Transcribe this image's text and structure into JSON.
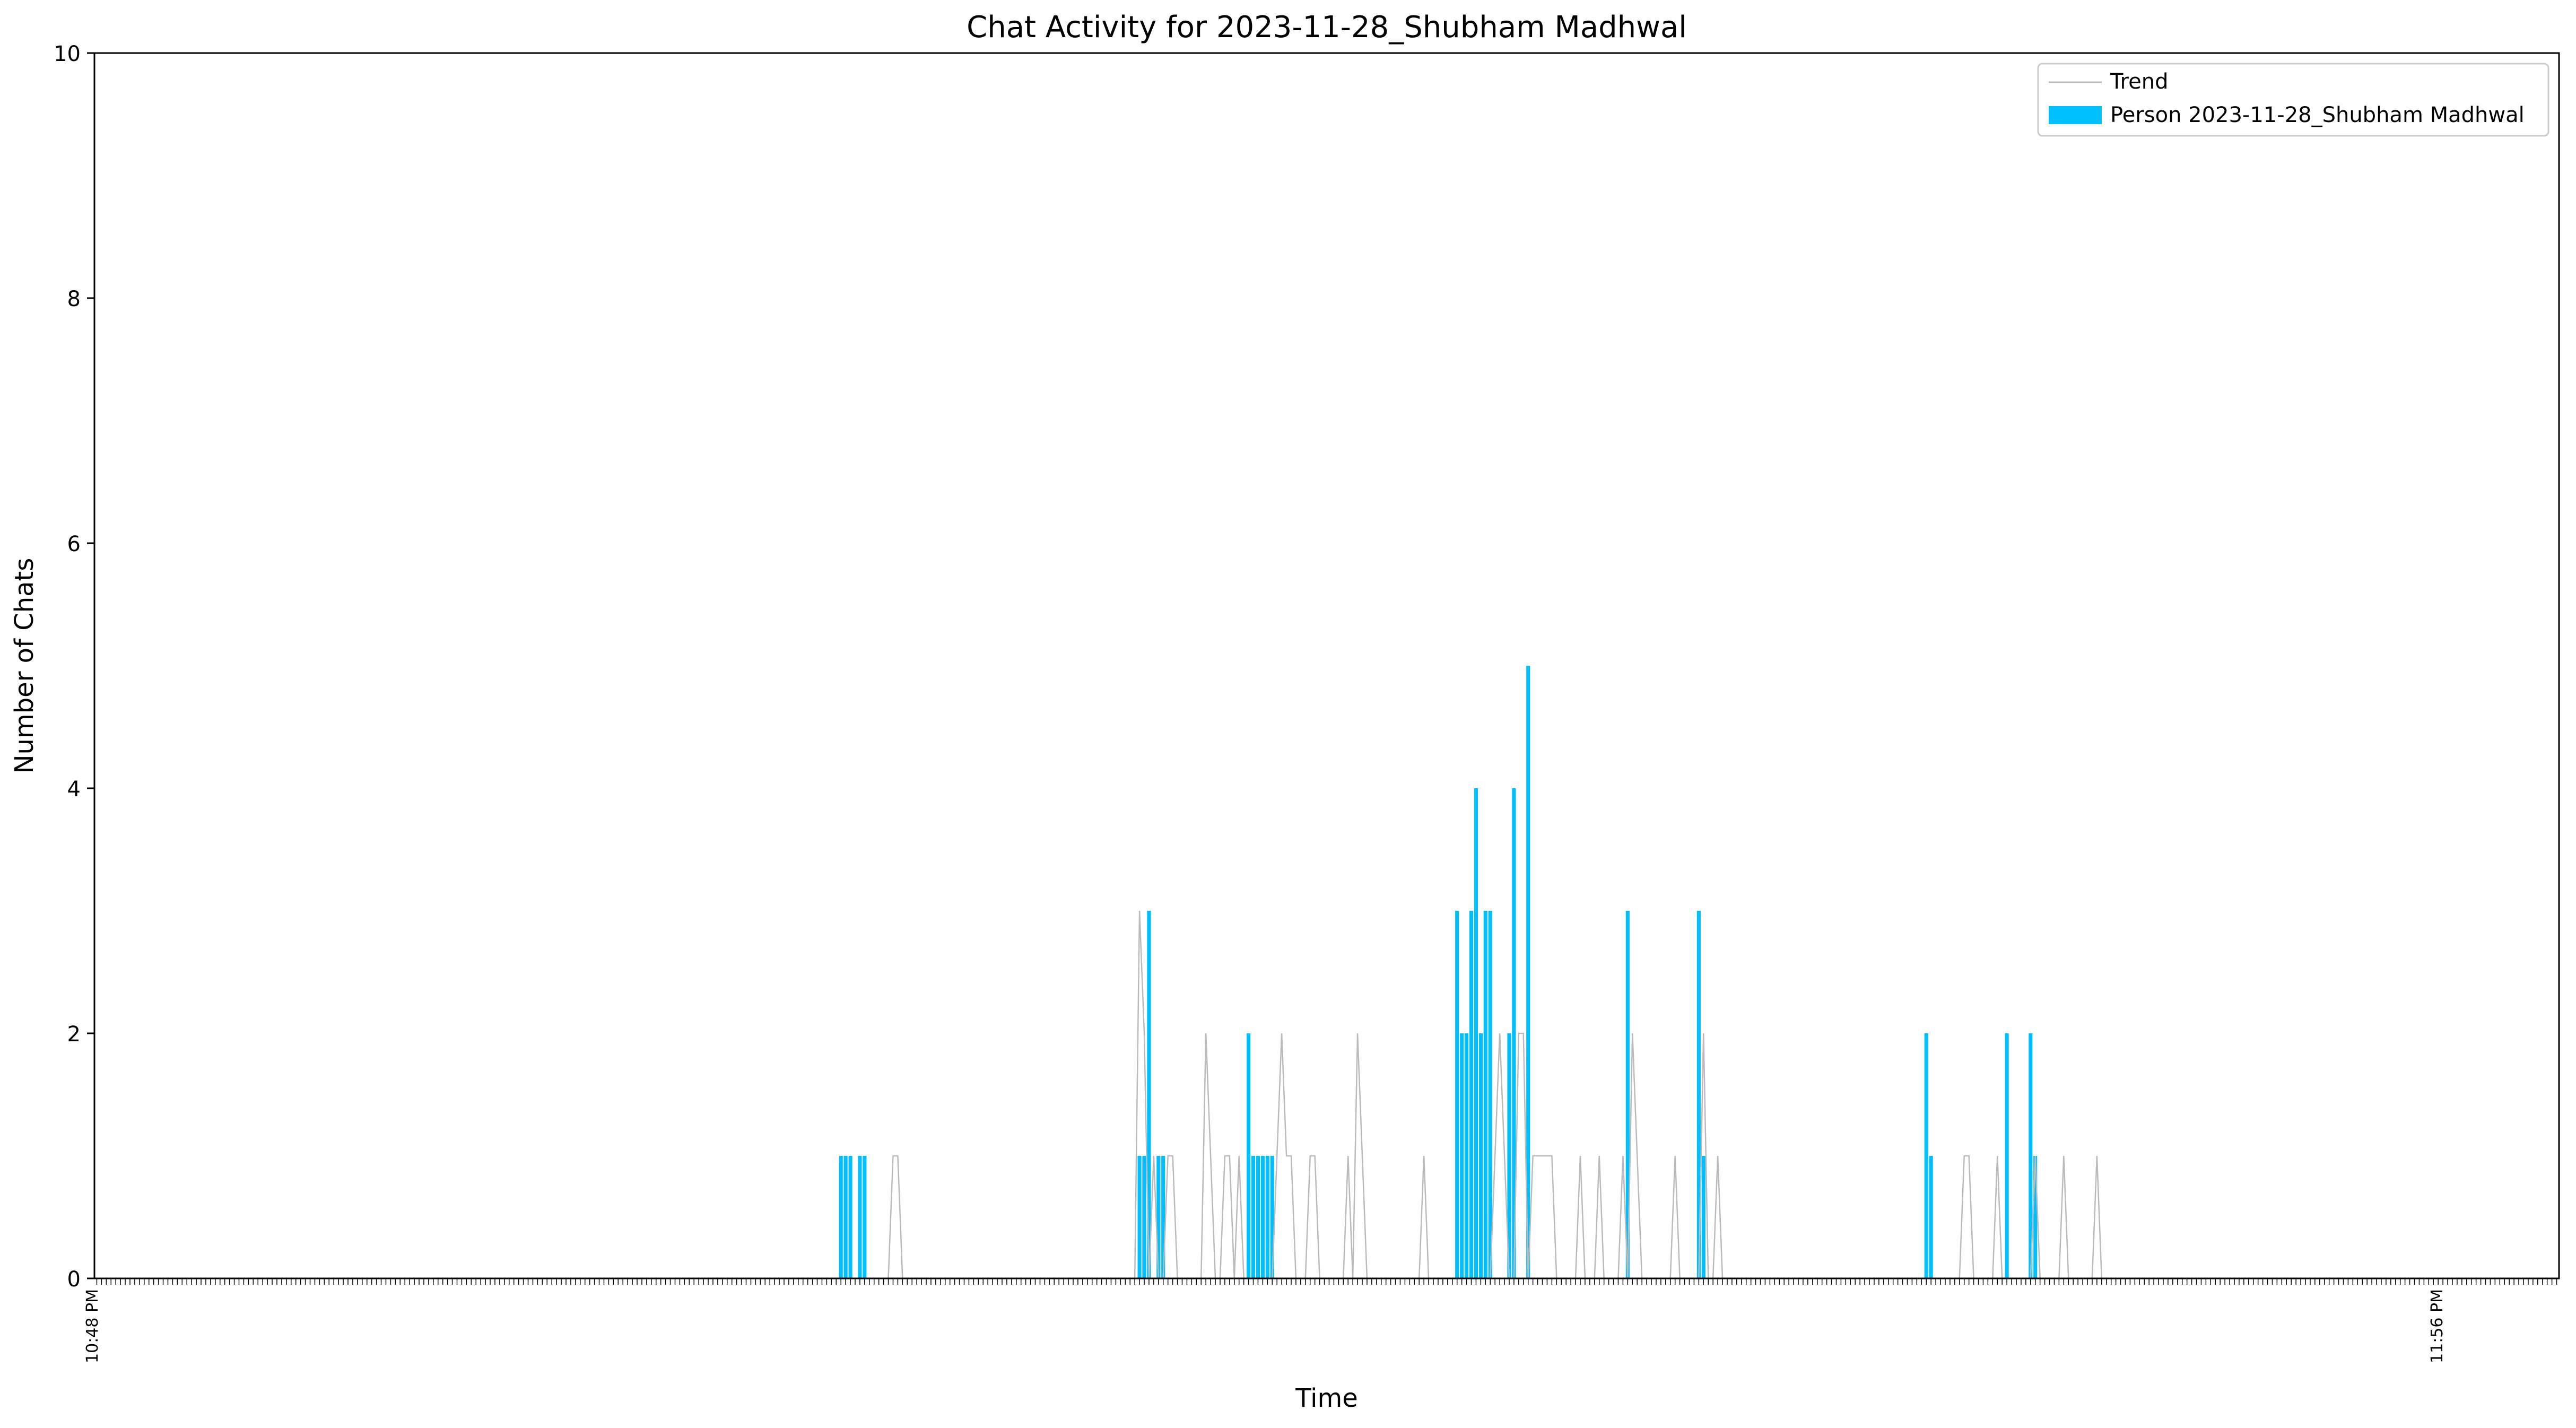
{
  "chart_data": {
    "type": "bar",
    "title": "Chat Activity for 2023-11-28_Shubham Madhwal",
    "xlabel": "Time",
    "ylabel": "Number of Chats",
    "ylim": [
      0,
      10
    ],
    "yticks": [
      0,
      2,
      4,
      6,
      8,
      10
    ],
    "grid": false,
    "legend": {
      "placement": "top-right",
      "entries": [
        {
          "label": "Trend",
          "kind": "line",
          "color": "#bbbbbb"
        },
        {
          "label": "Person 2023-11-28_Shubham Madhwal",
          "kind": "bar",
          "color": "#00bfff"
        }
      ]
    },
    "x_tick_labels": {
      "first": "10:48 PM",
      "last": "11:56 PM",
      "count": 520,
      "note_legible": false
    },
    "bar_color": "#00bfff",
    "trend_color": "#bbbbbb",
    "slot_count": 520,
    "bars": [
      {
        "slot": 157,
        "value": 1
      },
      {
        "slot": 158,
        "value": 1
      },
      {
        "slot": 159,
        "value": 1
      },
      {
        "slot": 161,
        "value": 1
      },
      {
        "slot": 162,
        "value": 1
      },
      {
        "slot": 220,
        "value": 1
      },
      {
        "slot": 221,
        "value": 1
      },
      {
        "slot": 222,
        "value": 3
      },
      {
        "slot": 224,
        "value": 1
      },
      {
        "slot": 225,
        "value": 1
      },
      {
        "slot": 243,
        "value": 2
      },
      {
        "slot": 244,
        "value": 1
      },
      {
        "slot": 245,
        "value": 1
      },
      {
        "slot": 246,
        "value": 1
      },
      {
        "slot": 247,
        "value": 1
      },
      {
        "slot": 248,
        "value": 1
      },
      {
        "slot": 287,
        "value": 3
      },
      {
        "slot": 288,
        "value": 2
      },
      {
        "slot": 289,
        "value": 2
      },
      {
        "slot": 290,
        "value": 3
      },
      {
        "slot": 291,
        "value": 4
      },
      {
        "slot": 292,
        "value": 2
      },
      {
        "slot": 293,
        "value": 3
      },
      {
        "slot": 294,
        "value": 3
      },
      {
        "slot": 298,
        "value": 2
      },
      {
        "slot": 299,
        "value": 4
      },
      {
        "slot": 302,
        "value": 5
      },
      {
        "slot": 323,
        "value": 3
      },
      {
        "slot": 338,
        "value": 3
      },
      {
        "slot": 339,
        "value": 1
      },
      {
        "slot": 386,
        "value": 2
      },
      {
        "slot": 387,
        "value": 1
      },
      {
        "slot": 403,
        "value": 2
      },
      {
        "slot": 408,
        "value": 2
      },
      {
        "slot": 409,
        "value": 1
      }
    ],
    "trend": [
      {
        "slot": 168,
        "value": 1
      },
      {
        "slot": 169,
        "value": 1
      },
      {
        "slot": 220,
        "value": 3
      },
      {
        "slot": 221,
        "value": 2
      },
      {
        "slot": 223,
        "value": 1
      },
      {
        "slot": 226,
        "value": 1
      },
      {
        "slot": 227,
        "value": 1
      },
      {
        "slot": 234,
        "value": 2
      },
      {
        "slot": 235,
        "value": 1
      },
      {
        "slot": 238,
        "value": 1
      },
      {
        "slot": 239,
        "value": 1
      },
      {
        "slot": 241,
        "value": 1
      },
      {
        "slot": 249,
        "value": 1
      },
      {
        "slot": 250,
        "value": 2
      },
      {
        "slot": 251,
        "value": 1
      },
      {
        "slot": 252,
        "value": 1
      },
      {
        "slot": 256,
        "value": 1
      },
      {
        "slot": 257,
        "value": 1
      },
      {
        "slot": 264,
        "value": 1
      },
      {
        "slot": 266,
        "value": 2
      },
      {
        "slot": 267,
        "value": 1
      },
      {
        "slot": 280,
        "value": 1
      },
      {
        "slot": 295,
        "value": 1
      },
      {
        "slot": 296,
        "value": 2
      },
      {
        "slot": 297,
        "value": 1
      },
      {
        "slot": 300,
        "value": 2
      },
      {
        "slot": 301,
        "value": 2
      },
      {
        "slot": 303,
        "value": 1
      },
      {
        "slot": 304,
        "value": 1
      },
      {
        "slot": 305,
        "value": 1
      },
      {
        "slot": 306,
        "value": 1
      },
      {
        "slot": 307,
        "value": 1
      },
      {
        "slot": 313,
        "value": 1
      },
      {
        "slot": 317,
        "value": 1
      },
      {
        "slot": 322,
        "value": 1
      },
      {
        "slot": 324,
        "value": 2
      },
      {
        "slot": 325,
        "value": 1
      },
      {
        "slot": 333,
        "value": 1
      },
      {
        "slot": 339,
        "value": 2
      },
      {
        "slot": 342,
        "value": 1
      },
      {
        "slot": 394,
        "value": 1
      },
      {
        "slot": 395,
        "value": 1
      },
      {
        "slot": 401,
        "value": 1
      },
      {
        "slot": 409,
        "value": 1
      },
      {
        "slot": 415,
        "value": 1
      },
      {
        "slot": 422,
        "value": 1
      }
    ]
  }
}
